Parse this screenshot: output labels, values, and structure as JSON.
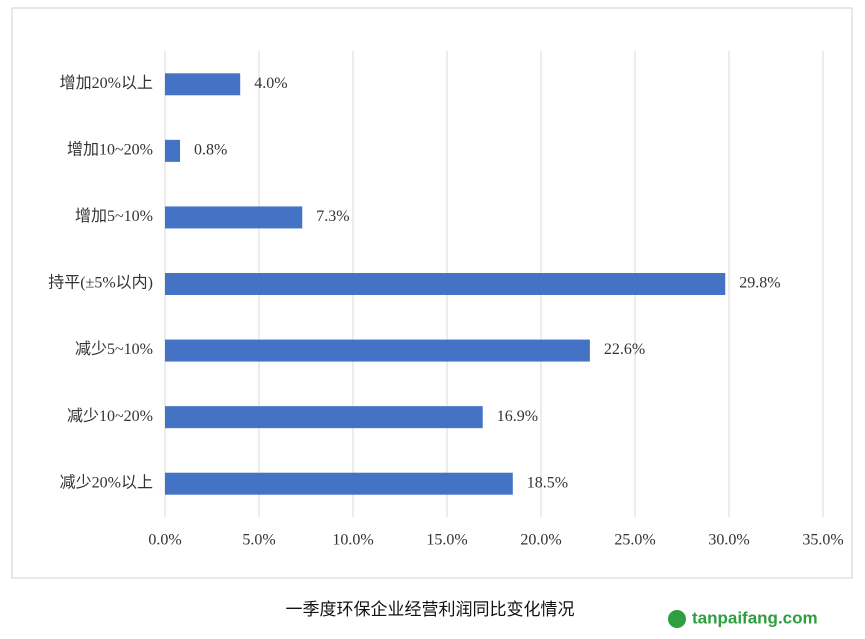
{
  "chart_data": {
    "type": "hbar",
    "title": "一季度环保企业经营利润同比变化情况",
    "categories": [
      "增加20%以上",
      "增加10~20%",
      "增加5~10%",
      "持平(±5%以内)",
      "减少5~10%",
      "减少10~20%",
      "减少20%以上"
    ],
    "values": [
      4.0,
      0.8,
      7.3,
      29.8,
      22.6,
      16.9,
      18.5
    ],
    "value_labels": [
      "4.0%",
      "0.8%",
      "7.3%",
      "29.8%",
      "22.6%",
      "16.9%",
      "18.5%"
    ],
    "color": "#4472c4",
    "xlim": [
      0,
      35
    ],
    "xticks": [
      {
        "value": 0,
        "label": "0.0%"
      },
      {
        "value": 5,
        "label": "5.0%"
      },
      {
        "value": 10,
        "label": "10.0%"
      },
      {
        "value": 15,
        "label": "15.0%"
      },
      {
        "value": 20,
        "label": "20.0%"
      },
      {
        "value": 25,
        "label": "25.0%"
      },
      {
        "value": 30,
        "label": "30.0%"
      },
      {
        "value": 35,
        "label": "35.0%"
      }
    ],
    "grid": true,
    "watermark": "tanpaifang.com"
  }
}
